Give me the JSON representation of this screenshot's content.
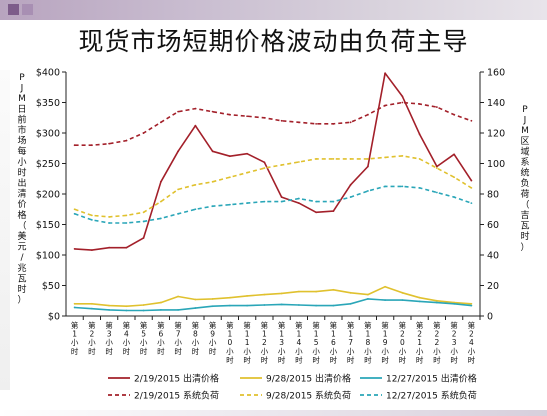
{
  "slide": {
    "title": "现货市场短期价格波动由负荷主导"
  },
  "chart_data": {
    "type": "line",
    "categories": [
      "第1小时",
      "第2小时",
      "第3小时",
      "第4小时",
      "第5小时",
      "第6小时",
      "第7小时",
      "第8小时",
      "第9小时",
      "第10小时",
      "第11小时",
      "第12小时",
      "第13小时",
      "第14小时",
      "第15小时",
      "第16小时",
      "第17小时",
      "第18小时",
      "第19小时",
      "第20小时",
      "第21小时",
      "第22小时",
      "第23小时",
      "第24小时"
    ],
    "category_labels_vertical": [
      "第\n1\n小\n时",
      "第\n2\n小\n时",
      "第\n3\n小\n时",
      "第\n4\n小\n时",
      "第\n5\n小\n时",
      "第\n6\n小\n时",
      "第\n7\n小\n时",
      "第\n8\n小\n时",
      "第\n9\n小\n时",
      "第\n1\n0\n小\n时",
      "第\n1\n1\n小\n时",
      "第\n1\n2\n小\n时",
      "第\n1\n3\n小\n时",
      "第\n1\n4\n小\n时",
      "第\n1\n5\n小\n时",
      "第\n1\n6\n小\n时",
      "第\n1\n7\n小\n时",
      "第\n1\n8\n小\n时",
      "第\n1\n9\n小\n时",
      "第\n2\n0\n小\n时",
      "第\n2\n1\n小\n时",
      "第\n2\n2\n小\n时",
      "第\n2\n3\n小\n时",
      "第\n2\n4\n小\n时"
    ],
    "ylabel_left": "PJM日前市场每小时出清价格（美元/兆瓦时）",
    "ylabel_right": "PJM区域系统负荷（吉瓦时）",
    "ylim_left": [
      0,
      400
    ],
    "ylim_right": [
      0,
      160
    ],
    "yticks_left": [
      "$0",
      "$50",
      "$100",
      "$150",
      "$200",
      "$250",
      "$300",
      "$350",
      "$400"
    ],
    "yticks_right": [
      "0",
      "20",
      "40",
      "60",
      "80",
      "100",
      "120",
      "140",
      "160"
    ],
    "grid": false,
    "legend_position": "bottom",
    "series": [
      {
        "name": "2/19/2015 出清价格",
        "axis": "left",
        "style": "solid",
        "color": "#a3202a",
        "values": [
          110,
          108,
          112,
          112,
          128,
          220,
          270,
          312,
          270,
          262,
          266,
          252,
          195,
          185,
          170,
          172,
          215,
          245,
          398,
          360,
          298,
          245,
          265,
          222
        ]
      },
      {
        "name": "9/28/2015 出清价格",
        "axis": "left",
        "style": "solid",
        "color": "#e0c12e",
        "values": [
          20,
          20,
          17,
          16,
          18,
          22,
          32,
          27,
          28,
          30,
          33,
          35,
          37,
          40,
          40,
          43,
          38,
          35,
          48,
          38,
          30,
          25,
          22,
          20
        ]
      },
      {
        "name": "12/27/2015 出清价格",
        "axis": "left",
        "style": "solid",
        "color": "#2aa6b8",
        "values": [
          14,
          12,
          10,
          9,
          9,
          10,
          10,
          13,
          16,
          17,
          17,
          18,
          19,
          18,
          17,
          17,
          20,
          28,
          26,
          26,
          24,
          22,
          20,
          17
        ]
      },
      {
        "name": "2/19/2015 系统负荷",
        "axis": "right",
        "style": "dashed",
        "color": "#a3202a",
        "values": [
          112,
          112,
          113,
          115,
          120,
          127,
          134,
          136,
          134,
          132,
          131,
          130,
          128,
          127,
          126,
          126,
          127,
          132,
          138,
          140,
          139,
          137,
          132,
          128
        ]
      },
      {
        "name": "9/28/2015 系统负荷",
        "axis": "right",
        "style": "dashed",
        "color": "#e0c12e",
        "values": [
          70,
          66,
          65,
          66,
          68,
          75,
          83,
          86,
          88,
          91,
          94,
          97,
          99,
          101,
          103,
          103,
          103,
          103,
          104,
          105,
          103,
          97,
          91,
          84
        ]
      },
      {
        "name": "12/27/2015 系统负荷",
        "axis": "right",
        "style": "dashed",
        "color": "#2aa6b8",
        "values": [
          67,
          63,
          61,
          61,
          62,
          64,
          67,
          70,
          72,
          73,
          74,
          75,
          75,
          77,
          75,
          75,
          78,
          82,
          85,
          85,
          84,
          81,
          78,
          74
        ]
      }
    ]
  }
}
